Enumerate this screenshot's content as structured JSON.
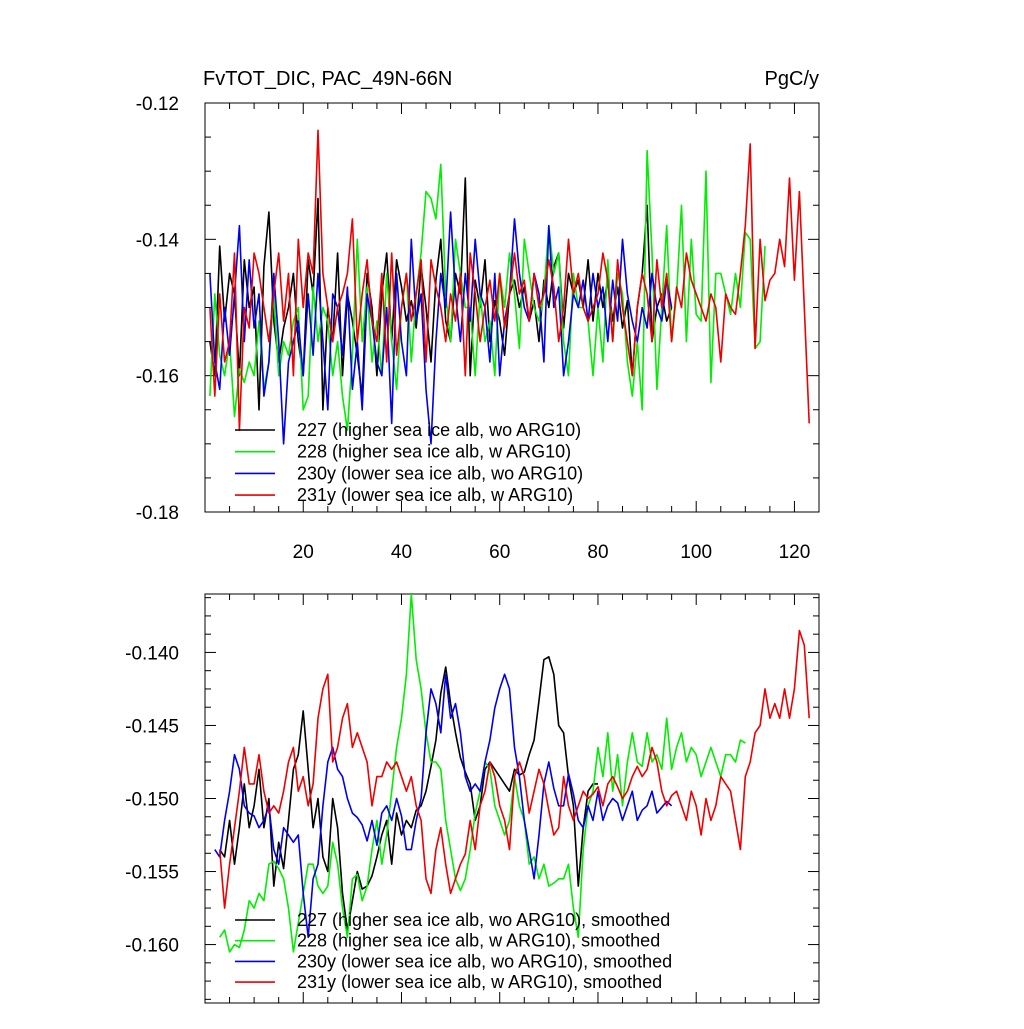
{
  "chart_data": [
    {
      "type": "line",
      "title": "FvTOT_DIC, PAC_49N-66N",
      "units_label": "PgC/y",
      "xlim": [
        0,
        125
      ],
      "ylim": [
        -0.18,
        -0.12
      ],
      "x_ticks": [
        20,
        40,
        60,
        80,
        100,
        120
      ],
      "y_ticks": [
        -0.18,
        -0.16,
        -0.14,
        -0.12
      ],
      "y_tick_labels": [
        "-0.18",
        "-0.16",
        "-0.14",
        "-0.12"
      ],
      "legend_position": "bottom-left",
      "series": [
        {
          "name": "227 (higher sea ice alb, wo ARG10)",
          "color": "#000000",
          "x_start": 1,
          "values": [
            -0.155,
            -0.16,
            -0.141,
            -0.152,
            -0.145,
            -0.148,
            -0.16,
            -0.143,
            -0.15,
            -0.147,
            -0.165,
            -0.144,
            -0.136,
            -0.152,
            -0.158,
            -0.153,
            -0.15,
            -0.145,
            -0.155,
            -0.16,
            -0.143,
            -0.148,
            -0.134,
            -0.165,
            -0.15,
            -0.155,
            -0.142,
            -0.16,
            -0.148,
            -0.152,
            -0.157,
            -0.163,
            -0.145,
            -0.15,
            -0.16,
            -0.148,
            -0.142,
            -0.155,
            -0.143,
            -0.147,
            -0.152,
            -0.149,
            -0.153,
            -0.144,
            -0.15,
            -0.158,
            -0.146,
            -0.14,
            -0.152,
            -0.155,
            -0.145,
            -0.148,
            -0.131,
            -0.16,
            -0.146,
            -0.15,
            -0.143,
            -0.155,
            -0.149,
            -0.152,
            -0.157,
            -0.148,
            -0.146,
            -0.15,
            -0.147,
            -0.152,
            -0.149,
            -0.155,
            -0.146,
            -0.15,
            -0.144,
            -0.142,
            -0.153,
            -0.145,
            -0.148,
            -0.146,
            -0.15,
            -0.143,
            -0.152,
            -0.145,
            -0.15,
            -0.146,
            -0.152,
            -0.147,
            -0.153,
            -0.149,
            -0.16,
            -0.15,
            -0.145,
            -0.135,
            -0.155,
            -0.15,
            -0.148,
            -0.152,
            -0.15
          ]
        },
        {
          "name": "228 (higher sea ice alb, w ARG10)",
          "color": "#00ee00",
          "x_start": 1,
          "values": [
            -0.163,
            -0.148,
            -0.157,
            -0.16,
            -0.155,
            -0.166,
            -0.159,
            -0.161,
            -0.158,
            -0.16,
            -0.152,
            -0.162,
            -0.158,
            -0.148,
            -0.16,
            -0.155,
            -0.157,
            -0.152,
            -0.15,
            -0.165,
            -0.163,
            -0.147,
            -0.155,
            -0.15,
            -0.152,
            -0.16,
            -0.155,
            -0.163,
            -0.168,
            -0.157,
            -0.14,
            -0.155,
            -0.147,
            -0.158,
            -0.152,
            -0.16,
            -0.145,
            -0.155,
            -0.162,
            -0.15,
            -0.145,
            -0.158,
            -0.148,
            -0.142,
            -0.133,
            -0.134,
            -0.137,
            -0.129,
            -0.148,
            -0.155,
            -0.14,
            -0.145,
            -0.15,
            -0.15,
            -0.16,
            -0.148,
            -0.155,
            -0.152,
            -0.16,
            -0.145,
            -0.15,
            -0.142,
            -0.148,
            -0.156,
            -0.14,
            -0.145,
            -0.15,
            -0.152,
            -0.148,
            -0.138,
            -0.145,
            -0.142,
            -0.155,
            -0.16,
            -0.145,
            -0.15,
            -0.15,
            -0.152,
            -0.16,
            -0.15,
            -0.158,
            -0.143,
            -0.155,
            -0.145,
            -0.148,
            -0.158,
            -0.163,
            -0.155,
            -0.165,
            -0.127,
            -0.142,
            -0.162,
            -0.15,
            -0.138,
            -0.155,
            -0.148,
            -0.135,
            -0.155,
            -0.14,
            -0.151,
            -0.152,
            -0.13,
            -0.161,
            -0.145,
            -0.145,
            -0.148,
            -0.151,
            -0.145,
            -0.15,
            -0.139,
            -0.14,
            -0.156,
            -0.155,
            -0.141
          ]
        },
        {
          "name": "230y (lower sea ice alb, wo ARG10)",
          "color": "#0000ee",
          "x_start": 1,
          "values": [
            -0.145,
            -0.158,
            -0.162,
            -0.15,
            -0.157,
            -0.148,
            -0.138,
            -0.155,
            -0.143,
            -0.153,
            -0.148,
            -0.163,
            -0.158,
            -0.145,
            -0.155,
            -0.17,
            -0.158,
            -0.155,
            -0.152,
            -0.16,
            -0.148,
            -0.157,
            -0.145,
            -0.155,
            -0.165,
            -0.148,
            -0.15,
            -0.157,
            -0.147,
            -0.162,
            -0.155,
            -0.165,
            -0.148,
            -0.152,
            -0.158,
            -0.16,
            -0.15,
            -0.167,
            -0.145,
            -0.155,
            -0.16,
            -0.14,
            -0.152,
            -0.148,
            -0.162,
            -0.17,
            -0.155,
            -0.145,
            -0.15,
            -0.136,
            -0.148,
            -0.155,
            -0.145,
            -0.152,
            -0.14,
            -0.148,
            -0.15,
            -0.158,
            -0.145,
            -0.16,
            -0.152,
            -0.148,
            -0.137,
            -0.145,
            -0.15,
            -0.152,
            -0.145,
            -0.148,
            -0.158,
            -0.138,
            -0.15,
            -0.147,
            -0.16,
            -0.155,
            -0.148,
            -0.15,
            -0.146,
            -0.152,
            -0.145,
            -0.15,
            -0.147,
            -0.155,
            -0.146,
            -0.152,
            -0.14,
            -0.148,
            -0.152,
            -0.155,
            -0.15,
            -0.153,
            -0.145,
            -0.15,
            -0.152,
            -0.146,
            -0.15
          ]
        },
        {
          "name": "231y (lower sea ice alb, w ARG10)",
          "color": "#ee0000",
          "x_start": 1,
          "values": [
            -0.15,
            -0.163,
            -0.148,
            -0.158,
            -0.155,
            -0.142,
            -0.168,
            -0.15,
            -0.153,
            -0.142,
            -0.145,
            -0.15,
            -0.155,
            -0.148,
            -0.142,
            -0.152,
            -0.145,
            -0.16,
            -0.14,
            -0.15,
            -0.142,
            -0.145,
            -0.124,
            -0.145,
            -0.15,
            -0.155,
            -0.15,
            -0.148,
            -0.145,
            -0.137,
            -0.155,
            -0.148,
            -0.143,
            -0.152,
            -0.155,
            -0.145,
            -0.158,
            -0.142,
            -0.157,
            -0.15,
            -0.145,
            -0.152,
            -0.148,
            -0.143,
            -0.158,
            -0.143,
            -0.147,
            -0.15,
            -0.155,
            -0.148,
            -0.152,
            -0.145,
            -0.16,
            -0.142,
            -0.148,
            -0.155,
            -0.15,
            -0.146,
            -0.152,
            -0.145,
            -0.153,
            -0.148,
            -0.142,
            -0.148,
            -0.146,
            -0.152,
            -0.145,
            -0.15,
            -0.148,
            -0.143,
            -0.147,
            -0.155,
            -0.15,
            -0.14,
            -0.148,
            -0.145,
            -0.15,
            -0.152,
            -0.15,
            -0.148,
            -0.142,
            -0.146,
            -0.155,
            -0.143,
            -0.15,
            -0.155,
            -0.16,
            -0.15,
            -0.145,
            -0.148,
            -0.155,
            -0.143,
            -0.15,
            -0.145,
            -0.155,
            -0.147,
            -0.15,
            -0.142,
            -0.146,
            -0.148,
            -0.15,
            -0.152,
            -0.148,
            -0.15,
            -0.158,
            -0.148,
            -0.15,
            -0.151,
            -0.145,
            -0.138,
            -0.126,
            -0.156,
            -0.14,
            -0.149,
            -0.146,
            -0.145,
            -0.14,
            -0.144,
            -0.131,
            -0.146,
            -0.133,
            -0.15,
            -0.167
          ]
        }
      ]
    },
    {
      "type": "line",
      "title": "",
      "xlim": [
        0,
        125
      ],
      "ylim": [
        -0.164,
        -0.136
      ],
      "x_ticks": [
        20,
        40,
        60,
        80,
        100,
        120
      ],
      "y_ticks": [
        -0.16,
        -0.155,
        -0.15,
        -0.145,
        -0.14
      ],
      "y_tick_labels": [
        "-0.160",
        "-0.155",
        "-0.150",
        "-0.145",
        "-0.140"
      ],
      "legend_position": "bottom-left",
      "series": [
        {
          "name": "227 (higher sea ice alb, wo ARG10), smoothed",
          "color": "#000000",
          "x_start": 3,
          "values": [
            -0.1535,
            -0.154,
            -0.1515,
            -0.1545,
            -0.152,
            -0.149,
            -0.152,
            -0.1505,
            -0.148,
            -0.152,
            -0.15,
            -0.156,
            -0.153,
            -0.1548,
            -0.1515,
            -0.148,
            -0.147,
            -0.144,
            -0.148,
            -0.152,
            -0.15,
            -0.154,
            -0.155,
            -0.15,
            -0.152,
            -0.1565,
            -0.159,
            -0.157,
            -0.155,
            -0.1562,
            -0.156,
            -0.1553,
            -0.154,
            -0.1525,
            -0.1515,
            -0.1545,
            -0.151,
            -0.1525,
            -0.1515,
            -0.152,
            -0.1508,
            -0.1505,
            -0.1495,
            -0.1478,
            -0.146,
            -0.1428,
            -0.141,
            -0.1435,
            -0.1455,
            -0.1472,
            -0.1482,
            -0.149,
            -0.1515,
            -0.1505,
            -0.148,
            -0.1475,
            -0.148,
            -0.1485,
            -0.149,
            -0.1495,
            -0.148,
            -0.1484,
            -0.1482,
            -0.147,
            -0.146,
            -0.1433,
            -0.1405,
            -0.1403,
            -0.1415,
            -0.145,
            -0.1455,
            -0.1485,
            -0.1505,
            -0.156,
            -0.152,
            -0.1495,
            -0.149,
            -0.149
          ]
        },
        {
          "name": "228 (higher sea ice alb, w ARG10), smoothed",
          "color": "#00ee00",
          "x_start": 3,
          "values": [
            -0.1595,
            -0.159,
            -0.1605,
            -0.16,
            -0.1602,
            -0.159,
            -0.157,
            -0.1575,
            -0.1565,
            -0.157,
            -0.1545,
            -0.1543,
            -0.1548,
            -0.1555,
            -0.1575,
            -0.1605,
            -0.1585,
            -0.1565,
            -0.1545,
            -0.1545,
            -0.156,
            -0.1565,
            -0.156,
            -0.153,
            -0.1545,
            -0.1575,
            -0.1595,
            -0.1555,
            -0.1552,
            -0.157,
            -0.156,
            -0.1535,
            -0.1515,
            -0.1545,
            -0.1525,
            -0.1495,
            -0.1465,
            -0.1445,
            -0.1415,
            -0.136,
            -0.1405,
            -0.1425,
            -0.1455,
            -0.1475,
            -0.1475,
            -0.148,
            -0.1515,
            -0.1535,
            -0.1555,
            -0.1563,
            -0.1555,
            -0.1535,
            -0.151,
            -0.1495,
            -0.1475,
            -0.148,
            -0.1505,
            -0.1515,
            -0.1525,
            -0.1515,
            -0.1485,
            -0.1505,
            -0.1515,
            -0.1545,
            -0.154,
            -0.1555,
            -0.1545,
            -0.156,
            -0.1558,
            -0.1555,
            -0.1555,
            -0.1545,
            -0.1575,
            -0.1595,
            -0.1535,
            -0.1505,
            -0.1495,
            -0.1465,
            -0.1485,
            -0.1455,
            -0.1495,
            -0.147,
            -0.1505,
            -0.1475,
            -0.1455,
            -0.1475,
            -0.1478,
            -0.1455,
            -0.1475,
            -0.147,
            -0.148,
            -0.1445,
            -0.148,
            -0.1465,
            -0.1455,
            -0.1475,
            -0.1465,
            -0.147,
            -0.1485,
            -0.1475,
            -0.1465,
            -0.1475,
            -0.1485,
            -0.147,
            -0.147,
            -0.1475,
            -0.146,
            -0.1462
          ]
        },
        {
          "name": "230y (lower sea ice alb, wo ARG10), smoothed",
          "color": "#0000ee",
          "x_start": 2,
          "values": [
            -0.1535,
            -0.154,
            -0.1515,
            -0.1495,
            -0.147,
            -0.148,
            -0.1505,
            -0.151,
            -0.1512,
            -0.152,
            -0.1515,
            -0.1505,
            -0.1535,
            -0.1545,
            -0.152,
            -0.1525,
            -0.153,
            -0.1525,
            -0.1565,
            -0.1595,
            -0.1555,
            -0.1545,
            -0.1505,
            -0.1475,
            -0.1465,
            -0.148,
            -0.1485,
            -0.15,
            -0.151,
            -0.1513,
            -0.1518,
            -0.1529,
            -0.1515,
            -0.1532,
            -0.151,
            -0.1505,
            -0.1515,
            -0.15,
            -0.1512,
            -0.1535,
            -0.1535,
            -0.1515,
            -0.15,
            -0.1455,
            -0.1425,
            -0.1435,
            -0.1455,
            -0.1415,
            -0.1445,
            -0.1435,
            -0.1455,
            -0.1485,
            -0.1495,
            -0.149,
            -0.1495,
            -0.1475,
            -0.146,
            -0.1438,
            -0.1425,
            -0.1415,
            -0.1425,
            -0.1465,
            -0.1485,
            -0.1515,
            -0.1535,
            -0.1555,
            -0.1525,
            -0.149,
            -0.1475,
            -0.1493,
            -0.1505,
            -0.1505,
            -0.1483,
            -0.1497,
            -0.1515,
            -0.152,
            -0.1505,
            -0.1515,
            -0.1495,
            -0.1515,
            -0.1505,
            -0.15,
            -0.1503,
            -0.1515,
            -0.1505,
            -0.1495,
            -0.1515,
            -0.1508,
            -0.1505,
            -0.1495,
            -0.151,
            -0.1506,
            -0.1502,
            -0.1505
          ]
        },
        {
          "name": "231y (lower sea ice alb, w ARG10), smoothed",
          "color": "#ee0000",
          "x_start": 3,
          "values": [
            -0.1535,
            -0.1575,
            -0.1545,
            -0.152,
            -0.1495,
            -0.1465,
            -0.149,
            -0.149,
            -0.147,
            -0.1495,
            -0.151,
            -0.1505,
            -0.151,
            -0.1495,
            -0.1475,
            -0.1465,
            -0.1495,
            -0.1485,
            -0.1505,
            -0.149,
            -0.1445,
            -0.1425,
            -0.1415,
            -0.1475,
            -0.1465,
            -0.1445,
            -0.1435,
            -0.1465,
            -0.1455,
            -0.1465,
            -0.1475,
            -0.1505,
            -0.1485,
            -0.1485,
            -0.1475,
            -0.148,
            -0.1475,
            -0.1485,
            -0.1495,
            -0.1485,
            -0.1505,
            -0.1515,
            -0.1555,
            -0.1565,
            -0.1535,
            -0.152,
            -0.1545,
            -0.1565,
            -0.1555,
            -0.1545,
            -0.1538,
            -0.1515,
            -0.1535,
            -0.1505,
            -0.1495,
            -0.1475,
            -0.1485,
            -0.1505,
            -0.1515,
            -0.1535,
            -0.1485,
            -0.1475,
            -0.1485,
            -0.151,
            -0.1495,
            -0.148,
            -0.149,
            -0.1508,
            -0.1525,
            -0.152,
            -0.1485,
            -0.1505,
            -0.1515,
            -0.1505,
            -0.1495,
            -0.15,
            -0.1497,
            -0.1492,
            -0.1505,
            -0.149,
            -0.1485,
            -0.1492,
            -0.15,
            -0.1495,
            -0.1485,
            -0.1478,
            -0.1485,
            -0.148,
            -0.1465,
            -0.1475,
            -0.1495,
            -0.1505,
            -0.1498,
            -0.1495,
            -0.1505,
            -0.1515,
            -0.1495,
            -0.1505,
            -0.1525,
            -0.15,
            -0.1515,
            -0.1505,
            -0.1485,
            -0.149,
            -0.1495,
            -0.1515,
            -0.1535,
            -0.1485,
            -0.1475,
            -0.1455,
            -0.145,
            -0.1425,
            -0.1445,
            -0.1435,
            -0.1445,
            -0.1425,
            -0.1445,
            -0.1425,
            -0.1385,
            -0.1395,
            -0.1445
          ]
        }
      ]
    }
  ]
}
